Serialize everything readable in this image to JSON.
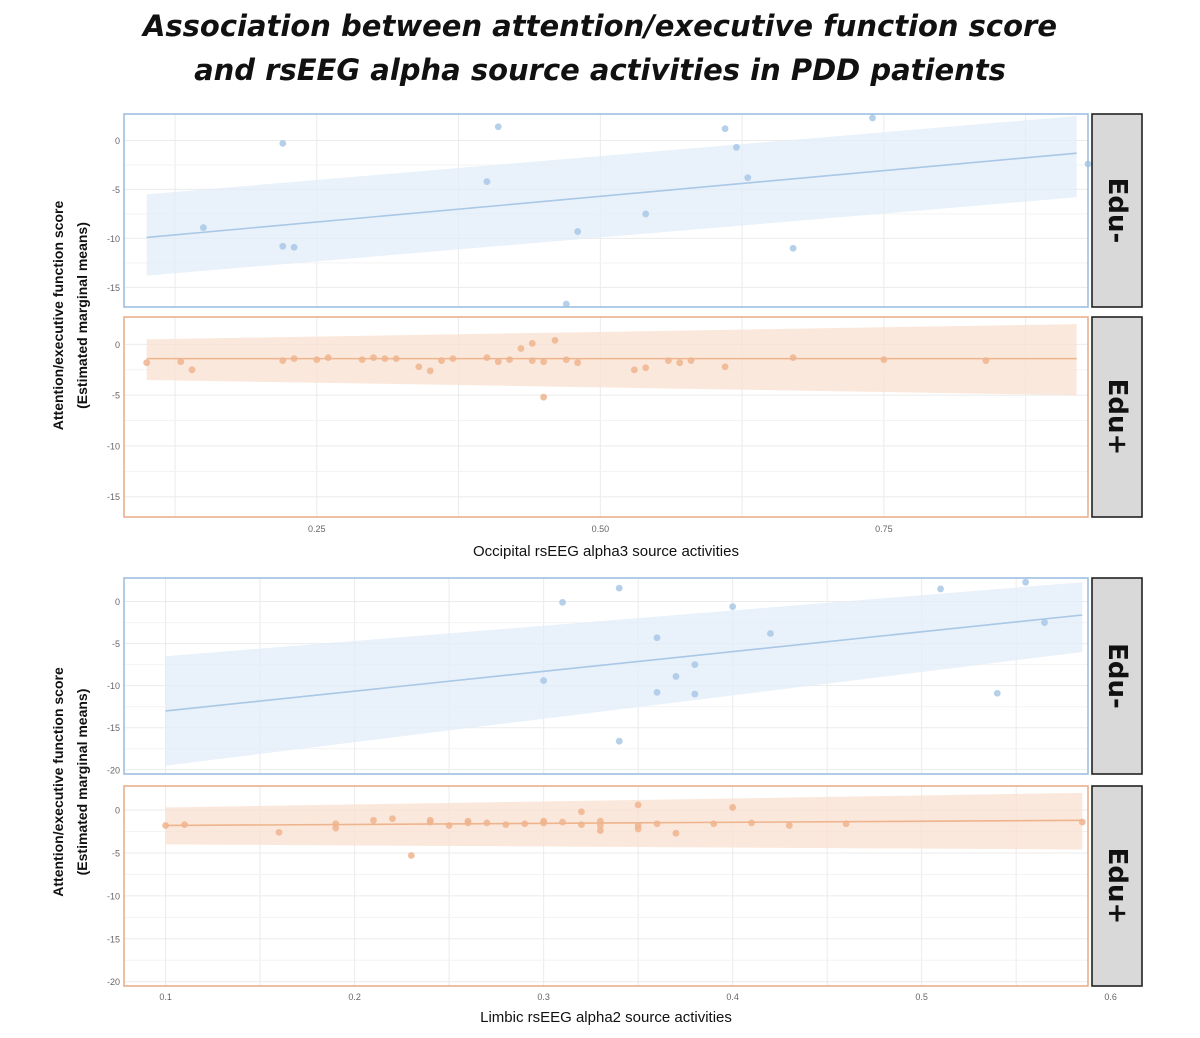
{
  "title_lines": [
    "Association between attention/executive function score",
    "and rsEEG alpha source activities in PDD patients"
  ],
  "colors": {
    "edu_minus": "#a9c8e6",
    "edu_minus_band": "#e2ecf8",
    "edu_minus_border": "#9cc0e2",
    "edu_plus": "#eeb48e",
    "edu_plus_band": "#f9e0d0",
    "edu_plus_border": "#eab08c",
    "strip_bg": "#d9d9d9",
    "grid": "#ebebeb"
  },
  "chart_data": [
    {
      "type": "scatter",
      "title": "",
      "xlabel": "Occipital rsEEG alpha3 source activities",
      "ylabel": [
        "Attention/executive function score",
        "(Estimated marginal means)"
      ],
      "xlim": [
        0.08,
        0.93
      ],
      "ylim": [
        -17,
        2.7
      ],
      "x_ticks": [
        0.25,
        0.5,
        0.75
      ],
      "x_tick_labels": [
        "0.25",
        "0.50",
        "0.75"
      ],
      "y_ticks": [
        0,
        -5,
        -10,
        -15
      ],
      "y_tick_labels": [
        "0",
        "-5",
        "-10",
        "-15"
      ],
      "panels": [
        {
          "label": "Edu-",
          "color_key": "edu_minus",
          "fit_line": {
            "x": [
              0.1,
              0.92
            ],
            "y": [
              -9.9,
              -1.3
            ]
          },
          "ci_band": {
            "x": [
              0.1,
              0.92
            ],
            "lower": [
              -13.8,
              -5.8
            ],
            "upper": [
              -5.5,
              2.5
            ]
          },
          "points": {
            "x": [
              0.15,
              0.22,
              0.22,
              0.23,
              0.4,
              0.41,
              0.47,
              0.48,
              0.54,
              0.61,
              0.62,
              0.63,
              0.67,
              0.74,
              0.93
            ],
            "y": [
              -8.9,
              -0.3,
              -10.8,
              -10.9,
              -4.2,
              1.4,
              -16.7,
              -9.3,
              -7.5,
              1.2,
              -0.7,
              -3.8,
              -11.0,
              2.3,
              -2.4
            ]
          }
        },
        {
          "label": "Edu+",
          "color_key": "edu_plus",
          "fit_line": {
            "x": [
              0.1,
              0.92
            ],
            "y": [
              -1.4,
              -1.4
            ]
          },
          "ci_band": {
            "x": [
              0.1,
              0.92
            ],
            "lower": [
              -3.5,
              -5.0
            ],
            "upper": [
              0.5,
              2.0
            ]
          },
          "points": {
            "x": [
              0.1,
              0.13,
              0.14,
              0.22,
              0.23,
              0.25,
              0.26,
              0.29,
              0.3,
              0.31,
              0.32,
              0.34,
              0.35,
              0.36,
              0.37,
              0.4,
              0.41,
              0.42,
              0.43,
              0.44,
              0.44,
              0.45,
              0.45,
              0.46,
              0.47,
              0.48,
              0.53,
              0.54,
              0.56,
              0.57,
              0.58,
              0.61,
              0.67,
              0.75,
              0.84
            ],
            "y": [
              -1.8,
              -1.7,
              -2.5,
              -1.6,
              -1.4,
              -1.5,
              -1.3,
              -1.5,
              -1.3,
              -1.4,
              -1.4,
              -2.2,
              -2.6,
              -1.6,
              -1.4,
              -1.3,
              -1.7,
              -1.5,
              -0.4,
              0.1,
              -1.6,
              -1.7,
              -5.2,
              0.4,
              -1.5,
              -1.8,
              -2.5,
              -2.3,
              -1.6,
              -1.8,
              -1.6,
              -2.2,
              -1.3,
              -1.5,
              -1.6
            ]
          }
        }
      ]
    },
    {
      "type": "scatter",
      "title": "",
      "xlabel": "Limbic rsEEG alpha2 source activities",
      "ylabel": [
        "Attention/executive function score",
        "(Estimated marginal means)"
      ],
      "xlim": [
        0.078,
        0.588
      ],
      "ylim": [
        -20.5,
        2.8
      ],
      "x_ticks": [
        0.1,
        0.2,
        0.3,
        0.4,
        0.5,
        0.6
      ],
      "x_tick_labels": [
        "0.1",
        "0.2",
        "0.3",
        "0.4",
        "0.5",
        "0.6"
      ],
      "y_ticks": [
        0,
        -5,
        -10,
        -15,
        -20
      ],
      "y_tick_labels": [
        "0",
        "-5",
        "-10",
        "-15",
        "-20"
      ],
      "panels": [
        {
          "label": "Edu-",
          "color_key": "edu_minus",
          "fit_line": {
            "x": [
              0.1,
              0.585
            ],
            "y": [
              -13.0,
              -1.6
            ]
          },
          "ci_band": {
            "x": [
              0.1,
              0.585
            ],
            "lower": [
              -19.5,
              -6.0
            ],
            "upper": [
              -6.5,
              2.3
            ]
          },
          "points": {
            "x": [
              0.3,
              0.31,
              0.34,
              0.34,
              0.36,
              0.36,
              0.37,
              0.38,
              0.38,
              0.4,
              0.42,
              0.51,
              0.54,
              0.555,
              0.565
            ],
            "y": [
              -9.4,
              -0.1,
              1.6,
              -16.6,
              -4.3,
              -10.8,
              -8.9,
              -7.5,
              -11.0,
              -0.6,
              -3.8,
              1.5,
              -10.9,
              2.3,
              -2.5
            ]
          }
        },
        {
          "label": "Edu+",
          "color_key": "edu_plus",
          "fit_line": {
            "x": [
              0.1,
              0.585
            ],
            "y": [
              -1.8,
              -1.2
            ]
          },
          "ci_band": {
            "x": [
              0.1,
              0.585
            ],
            "lower": [
              -4.0,
              -4.6
            ],
            "upper": [
              0.3,
              2.0
            ]
          },
          "points": {
            "x": [
              0.1,
              0.11,
              0.16,
              0.19,
              0.19,
              0.22,
              0.23,
              0.24,
              0.24,
              0.25,
              0.26,
              0.26,
              0.27,
              0.28,
              0.29,
              0.3,
              0.3,
              0.31,
              0.32,
              0.32,
              0.33,
              0.33,
              0.33,
              0.35,
              0.35,
              0.35,
              0.36,
              0.37,
              0.39,
              0.4,
              0.41,
              0.43,
              0.46,
              0.585,
              0.21
            ],
            "y": [
              -1.8,
              -1.7,
              -2.6,
              -1.6,
              -2.1,
              -1.0,
              -5.3,
              -1.4,
              -1.2,
              -1.8,
              -1.3,
              -1.5,
              -1.5,
              -1.7,
              -1.6,
              -1.5,
              -1.3,
              -1.4,
              -0.2,
              -1.7,
              -1.8,
              -1.3,
              -2.4,
              -1.8,
              -2.2,
              0.6,
              -1.6,
              -2.7,
              -1.6,
              0.3,
              -1.5,
              -1.8,
              -1.6,
              -1.4,
              -1.2
            ]
          }
        }
      ]
    }
  ]
}
